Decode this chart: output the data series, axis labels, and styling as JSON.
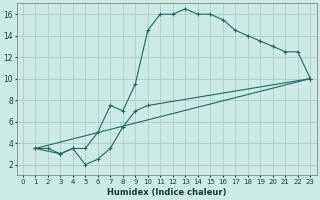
{
  "xlabel": "Humidex (Indice chaleur)",
  "bg_color": "#ceeae4",
  "line_color": "#1a6b6b",
  "grid_color": "#aacfc8",
  "xlim": [
    -0.5,
    23.5
  ],
  "ylim": [
    1.0,
    17.0
  ],
  "xticks": [
    0,
    1,
    2,
    3,
    4,
    5,
    6,
    7,
    8,
    9,
    10,
    11,
    12,
    13,
    14,
    15,
    16,
    17,
    18,
    19,
    20,
    21,
    22,
    23
  ],
  "yticks": [
    2,
    4,
    6,
    8,
    10,
    12,
    14,
    16
  ],
  "line1": {
    "x": [
      1,
      2,
      3,
      4,
      5,
      6,
      7,
      8,
      9,
      10,
      11,
      12,
      13,
      14,
      15,
      16,
      17,
      18,
      19,
      20,
      21,
      22,
      23
    ],
    "y": [
      3.5,
      3.5,
      3.0,
      3.5,
      3.5,
      5.0,
      7.5,
      7.0,
      9.5,
      14.5,
      16.0,
      16.0,
      16.5,
      16.0,
      16.0,
      15.5,
      14.5,
      14.0,
      13.5,
      13.0,
      12.5,
      12.5,
      10.0
    ]
  },
  "line2": {
    "x": [
      1,
      3,
      4,
      5,
      6,
      7,
      8,
      9,
      10,
      23
    ],
    "y": [
      3.5,
      3.0,
      3.5,
      2.0,
      2.5,
      3.5,
      5.5,
      7.0,
      7.5,
      10.0
    ]
  },
  "line3": {
    "x": [
      1,
      23
    ],
    "y": [
      3.5,
      10.0
    ]
  }
}
